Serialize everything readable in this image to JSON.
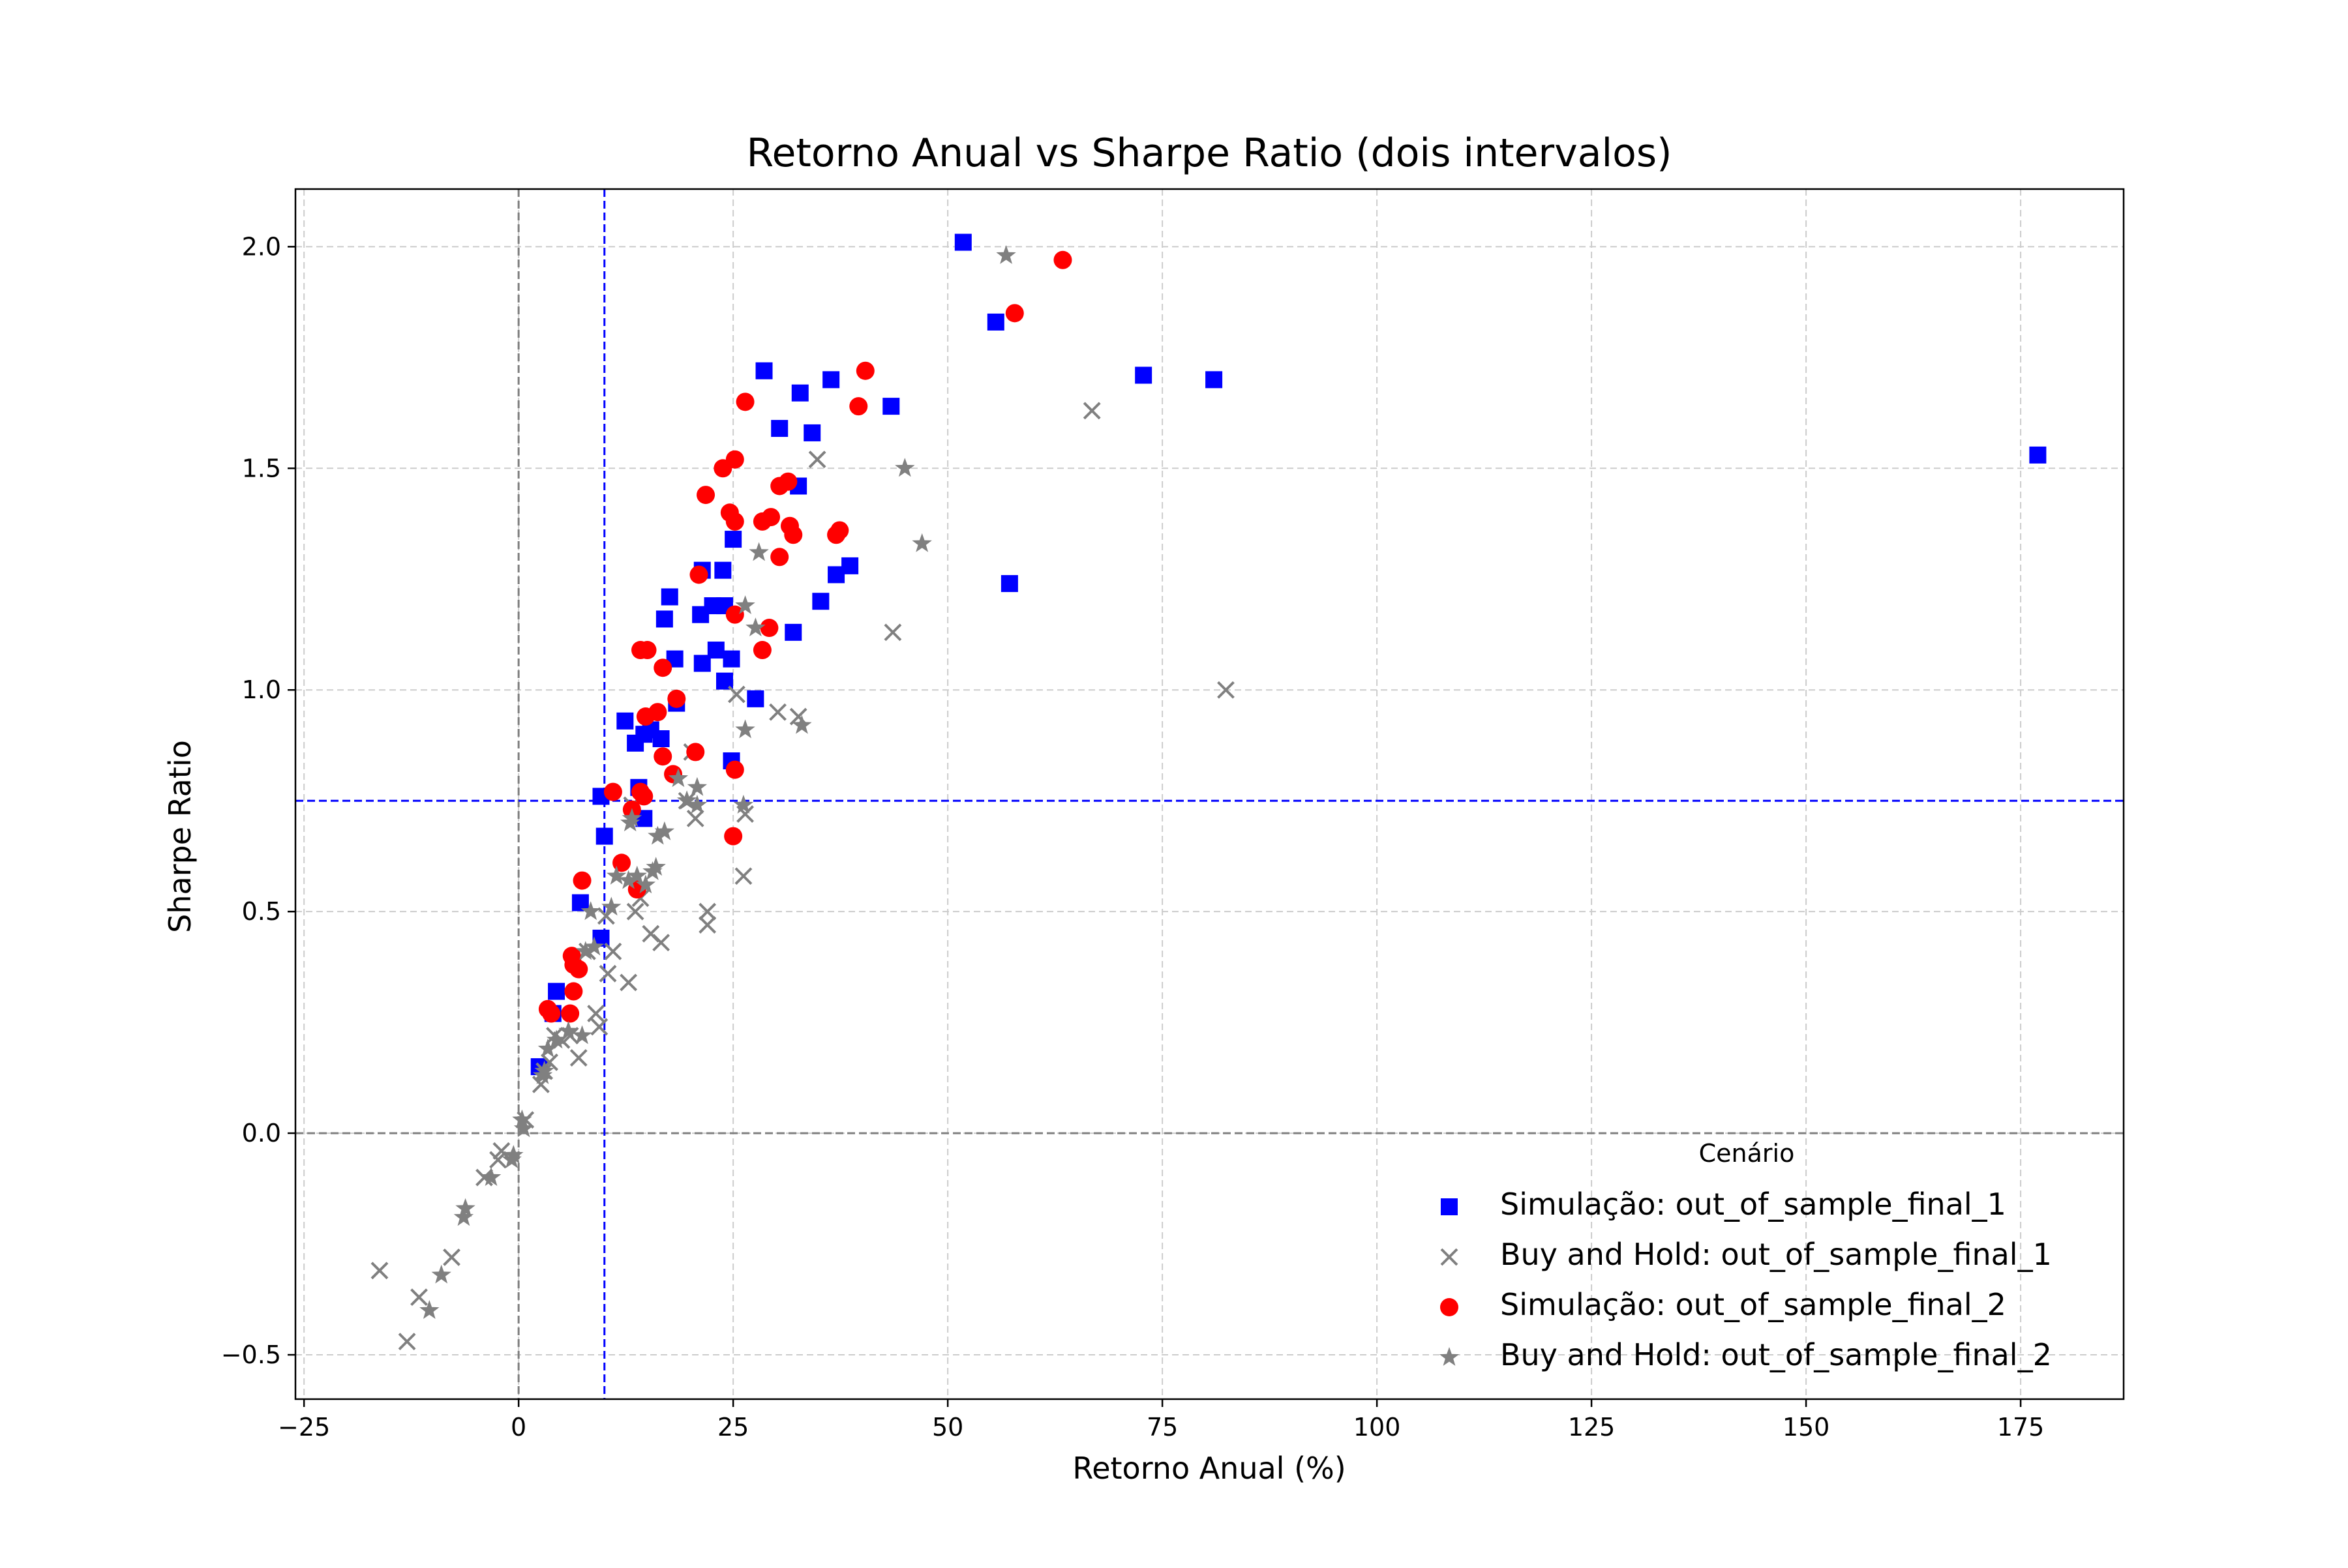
{
  "chart_data": {
    "type": "scatter",
    "title": "Retorno Anual vs Sharpe Ratio (dois intervalos)",
    "xlabel": "Retorno Anual (%)",
    "ylabel": "Sharpe Ratio",
    "xlim": [
      -26,
      187
    ],
    "ylim": [
      -0.6,
      2.13
    ],
    "xticks": [
      -25,
      0,
      25,
      50,
      75,
      100,
      125,
      150,
      175
    ],
    "xtick_labels": [
      "−25",
      "0",
      "25",
      "50",
      "75",
      "100",
      "125",
      "150",
      "175"
    ],
    "yticks": [
      -0.5,
      0.0,
      0.5,
      1.0,
      1.5,
      2.0
    ],
    "ytick_labels": [
      "−0.5",
      "0.0",
      "0.5",
      "1.0",
      "1.5",
      "2.0"
    ],
    "grid": true,
    "reference_lines": [
      {
        "orientation": "vertical",
        "value": 0,
        "color": "#808080",
        "style": "dashed"
      },
      {
        "orientation": "horizontal",
        "value": 0,
        "color": "#808080",
        "style": "dashed"
      },
      {
        "orientation": "vertical",
        "value": 10,
        "color": "#0000ff",
        "style": "dashed"
      },
      {
        "orientation": "horizontal",
        "value": 0.75,
        "color": "#0000ff",
        "style": "dashed"
      }
    ],
    "legend": {
      "title": "Cenário",
      "placement": "lower right"
    },
    "series": [
      {
        "name": "Simulação: out_of_sample_final_1",
        "marker": "square",
        "color": "#0000ff",
        "points": [
          [
            51.8,
            2.01
          ],
          [
            55.6,
            1.83
          ],
          [
            72.8,
            1.71
          ],
          [
            81.0,
            1.7
          ],
          [
            177.0,
            1.53
          ],
          [
            57.2,
            1.24
          ],
          [
            28.6,
            1.72
          ],
          [
            36.4,
            1.7
          ],
          [
            32.8,
            1.67
          ],
          [
            43.4,
            1.64
          ],
          [
            30.4,
            1.59
          ],
          [
            34.2,
            1.58
          ],
          [
            32.6,
            1.46
          ],
          [
            25.0,
            1.34
          ],
          [
            21.4,
            1.27
          ],
          [
            23.8,
            1.27
          ],
          [
            38.6,
            1.28
          ],
          [
            37.0,
            1.26
          ],
          [
            35.2,
            1.2
          ],
          [
            17.6,
            1.21
          ],
          [
            22.6,
            1.19
          ],
          [
            24.0,
            1.19
          ],
          [
            21.2,
            1.17
          ],
          [
            17.0,
            1.16
          ],
          [
            32.0,
            1.13
          ],
          [
            23.0,
            1.09
          ],
          [
            18.2,
            1.07
          ],
          [
            21.4,
            1.06
          ],
          [
            24.8,
            1.07
          ],
          [
            24.0,
            1.02
          ],
          [
            27.6,
            0.98
          ],
          [
            18.4,
            0.97
          ],
          [
            12.4,
            0.93
          ],
          [
            15.4,
            0.91
          ],
          [
            14.6,
            0.9
          ],
          [
            16.6,
            0.89
          ],
          [
            13.6,
            0.88
          ],
          [
            24.8,
            0.84
          ],
          [
            14.0,
            0.78
          ],
          [
            9.6,
            0.76
          ],
          [
            10.0,
            0.67
          ],
          [
            14.6,
            0.71
          ],
          [
            7.2,
            0.52
          ],
          [
            9.6,
            0.44
          ],
          [
            4.4,
            0.32
          ],
          [
            4.0,
            0.27
          ],
          [
            2.4,
            0.15
          ]
        ]
      },
      {
        "name": "Buy and Hold: out_of_sample_final_1",
        "marker": "x",
        "color": "#808080",
        "points": [
          [
            82.4,
            1.0
          ],
          [
            66.8,
            1.63
          ],
          [
            43.6,
            1.13
          ],
          [
            34.8,
            1.52
          ],
          [
            32.6,
            0.94
          ],
          [
            30.2,
            0.95
          ],
          [
            26.2,
            0.58
          ],
          [
            26.4,
            0.72
          ],
          [
            25.4,
            0.99
          ],
          [
            22.0,
            0.5
          ],
          [
            22.0,
            0.47
          ],
          [
            20.6,
            0.71
          ],
          [
            20.2,
            0.86
          ],
          [
            19.6,
            0.75
          ],
          [
            16.6,
            0.43
          ],
          [
            15.4,
            0.45
          ],
          [
            14.2,
            0.53
          ],
          [
            13.6,
            0.5
          ],
          [
            13.2,
            0.74
          ],
          [
            12.8,
            0.34
          ],
          [
            11.0,
            0.41
          ],
          [
            10.4,
            0.36
          ],
          [
            10.2,
            0.49
          ],
          [
            9.4,
            0.24
          ],
          [
            9.0,
            0.27
          ],
          [
            8.0,
            0.41
          ],
          [
            7.0,
            0.17
          ],
          [
            6.0,
            0.22
          ],
          [
            5.0,
            0.21
          ],
          [
            4.2,
            0.22
          ],
          [
            3.6,
            0.16
          ],
          [
            3.0,
            0.14
          ],
          [
            2.6,
            0.11
          ],
          [
            0.8,
            0.03
          ],
          [
            -2.0,
            -0.04
          ],
          [
            -2.4,
            -0.06
          ],
          [
            -4.0,
            -0.1
          ],
          [
            -7.8,
            -0.28
          ],
          [
            -11.6,
            -0.37
          ],
          [
            -13.0,
            -0.47
          ],
          [
            -16.2,
            -0.31
          ]
        ]
      },
      {
        "name": "Simulação: out_of_sample_final_2",
        "marker": "circle",
        "color": "#ff0000",
        "points": [
          [
            63.4,
            1.97
          ],
          [
            57.8,
            1.85
          ],
          [
            40.4,
            1.72
          ],
          [
            39.6,
            1.64
          ],
          [
            26.4,
            1.65
          ],
          [
            25.2,
            1.52
          ],
          [
            23.8,
            1.5
          ],
          [
            21.8,
            1.44
          ],
          [
            24.6,
            1.4
          ],
          [
            25.2,
            1.38
          ],
          [
            31.4,
            1.47
          ],
          [
            30.4,
            1.46
          ],
          [
            29.4,
            1.39
          ],
          [
            28.4,
            1.38
          ],
          [
            31.6,
            1.37
          ],
          [
            32.0,
            1.35
          ],
          [
            37.4,
            1.36
          ],
          [
            37.0,
            1.35
          ],
          [
            30.4,
            1.3
          ],
          [
            21.0,
            1.26
          ],
          [
            25.2,
            1.17
          ],
          [
            29.2,
            1.14
          ],
          [
            28.4,
            1.09
          ],
          [
            14.2,
            1.09
          ],
          [
            15.0,
            1.09
          ],
          [
            16.8,
            1.05
          ],
          [
            18.4,
            0.98
          ],
          [
            16.2,
            0.95
          ],
          [
            14.8,
            0.94
          ],
          [
            16.8,
            0.85
          ],
          [
            20.6,
            0.86
          ],
          [
            25.2,
            0.82
          ],
          [
            18.0,
            0.81
          ],
          [
            14.2,
            0.77
          ],
          [
            14.6,
            0.76
          ],
          [
            11.0,
            0.77
          ],
          [
            13.2,
            0.73
          ],
          [
            25.0,
            0.67
          ],
          [
            12.0,
            0.61
          ],
          [
            7.4,
            0.57
          ],
          [
            13.8,
            0.55
          ],
          [
            6.2,
            0.4
          ],
          [
            6.4,
            0.38
          ],
          [
            7.0,
            0.37
          ],
          [
            6.4,
            0.32
          ],
          [
            3.4,
            0.28
          ],
          [
            3.8,
            0.27
          ],
          [
            6.0,
            0.27
          ]
        ]
      },
      {
        "name": "Buy and Hold: out_of_sample_final_2",
        "marker": "star",
        "color": "#808080",
        "points": [
          [
            56.8,
            1.98
          ],
          [
            45.0,
            1.5
          ],
          [
            47.0,
            1.33
          ],
          [
            28.0,
            1.31
          ],
          [
            26.4,
            1.19
          ],
          [
            27.6,
            1.14
          ],
          [
            26.4,
            0.91
          ],
          [
            33.0,
            0.92
          ],
          [
            26.2,
            0.74
          ],
          [
            20.8,
            0.78
          ],
          [
            18.6,
            0.8
          ],
          [
            19.6,
            0.75
          ],
          [
            20.8,
            0.74
          ],
          [
            17.0,
            0.68
          ],
          [
            16.2,
            0.67
          ],
          [
            16.0,
            0.6
          ],
          [
            15.6,
            0.59
          ],
          [
            14.8,
            0.56
          ],
          [
            13.8,
            0.58
          ],
          [
            13.0,
            0.7
          ],
          [
            12.8,
            0.57
          ],
          [
            13.2,
            0.71
          ],
          [
            11.4,
            0.58
          ],
          [
            10.8,
            0.51
          ],
          [
            8.4,
            0.5
          ],
          [
            8.8,
            0.42
          ],
          [
            7.8,
            0.41
          ],
          [
            7.4,
            0.22
          ],
          [
            5.8,
            0.23
          ],
          [
            4.4,
            0.21
          ],
          [
            3.4,
            0.19
          ],
          [
            3.0,
            0.14
          ],
          [
            2.8,
            0.13
          ],
          [
            0.4,
            0.03
          ],
          [
            0.6,
            0.01
          ],
          [
            -0.6,
            -0.05
          ],
          [
            -0.8,
            -0.06
          ],
          [
            -3.2,
            -0.1
          ],
          [
            -6.2,
            -0.17
          ],
          [
            -6.4,
            -0.19
          ],
          [
            -9.0,
            -0.32
          ],
          [
            -10.4,
            -0.4
          ]
        ]
      }
    ]
  }
}
